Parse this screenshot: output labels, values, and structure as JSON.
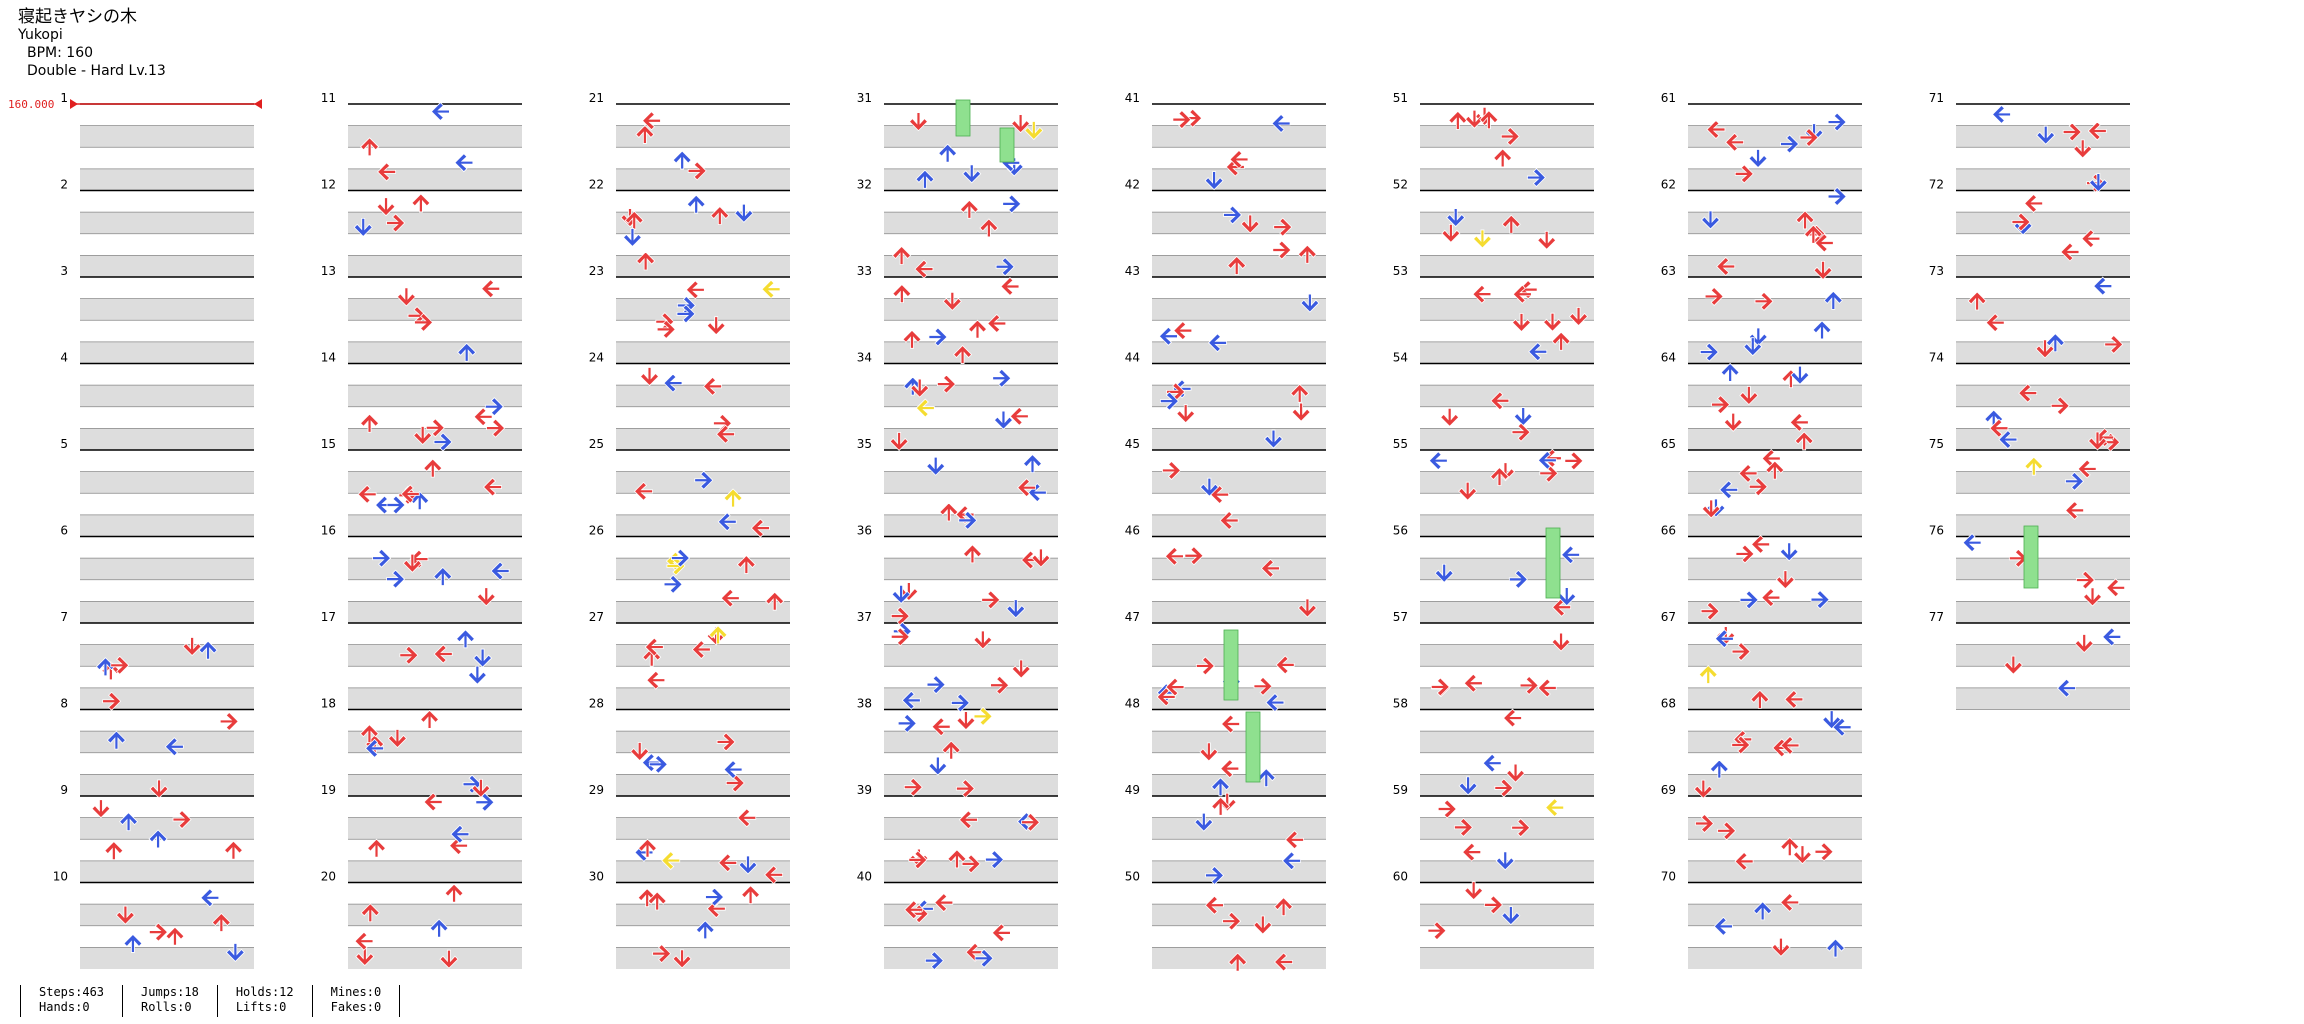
{
  "header": {
    "title": "寝起きヤシの木",
    "artist": "Yukopi",
    "bpm_line": "BPM: 160",
    "difficulty_line": "Double - Hard Lv.13"
  },
  "bpm_marker": "160.000",
  "colors": {
    "red": "#e83c3c",
    "blue": "#3a5ae0",
    "yellow": "#f5dc30",
    "green": "#8fe08f",
    "band": "#dddddd"
  },
  "total_measures": 77,
  "stats": [
    {
      "a": "Steps:463",
      "b": "Hands:0"
    },
    {
      "a": "Jumps:18",
      "b": "Rolls:0"
    },
    {
      "a": "Holds:12",
      "b": "Lifts:0"
    },
    {
      "a": "Mines:0",
      "b": "Fakes:0"
    }
  ]
}
